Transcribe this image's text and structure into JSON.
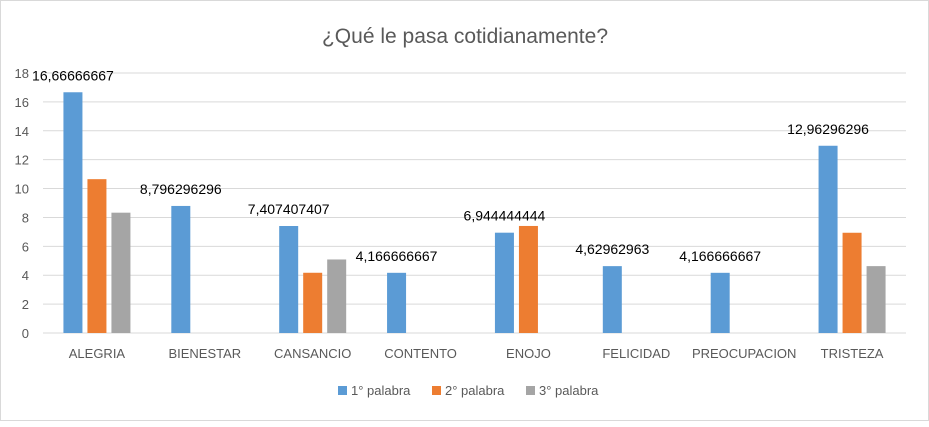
{
  "chart_data": {
    "type": "bar",
    "title": "¿Qué le pasa cotidianamente?",
    "xlabel": "",
    "ylabel": "",
    "ylim": [
      0,
      18
    ],
    "yticks": [
      "0",
      "2",
      "4",
      "6",
      "8",
      "10",
      "12",
      "14",
      "16",
      "18"
    ],
    "grid": true,
    "legend_position": "bottom",
    "categories": [
      "ALEGRIA",
      "BIENESTAR",
      "CANSANCIO",
      "CONTENTO",
      "ENOJO",
      "FELICIDAD",
      "PREOCUPACION",
      "TRISTEZA"
    ],
    "series": [
      {
        "name": "1° palabra",
        "color": "#5B9BD5",
        "values": [
          16.66666667,
          8.796296296,
          7.407407407,
          4.166666667,
          6.944444444,
          4.62962963,
          4.166666667,
          12.96296296
        ],
        "labels": [
          "16,66666667",
          "8,796296296",
          "7,407407407",
          "4,166666667",
          "6,944444444",
          "4,62962963",
          "4,166666667",
          "12,96296296"
        ]
      },
      {
        "name": "2° palabra",
        "color": "#ED7D31",
        "values": [
          10.65,
          0,
          4.17,
          0,
          7.41,
          0,
          0,
          6.94
        ]
      },
      {
        "name": "3° palabra",
        "color": "#A5A5A5",
        "values": [
          8.33,
          0,
          5.09,
          0,
          0,
          0,
          0,
          4.63
        ]
      }
    ]
  }
}
